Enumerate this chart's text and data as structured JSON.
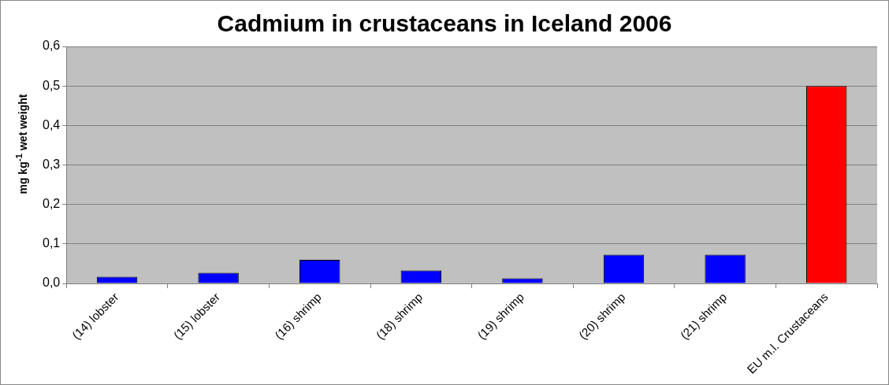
{
  "chart_data": {
    "type": "bar",
    "title": "Cadmium in crustaceans in Iceland 2006",
    "ylabel": "mg kg$^{-1}$ wet weight",
    "categories": [
      "(14) lobster",
      "(15) lobster",
      "(16) shrimp",
      "(18) shrimp",
      "(19) shrimp",
      "(20) shrimp",
      "(21) shrimp",
      "EU m.l. Crustaceans"
    ],
    "values": [
      0.017,
      0.027,
      0.06,
      0.033,
      0.013,
      0.073,
      0.073,
      0.5
    ],
    "colors": [
      "#0000ff",
      "#0000ff",
      "#0000ff",
      "#0000ff",
      "#0000ff",
      "#0000ff",
      "#0000ff",
      "#ff0000"
    ],
    "ylim": [
      0,
      0.6
    ],
    "yticks": [
      {
        "value": 0,
        "label": "0,0"
      },
      {
        "value": 0.1,
        "label": "0,1"
      },
      {
        "value": 0.2,
        "label": "0,2"
      },
      {
        "value": 0.3,
        "label": "0,3"
      },
      {
        "value": 0.4,
        "label": "0,4"
      },
      {
        "value": 0.5,
        "label": "0,5"
      },
      {
        "value": 0.6,
        "label": "0,6"
      }
    ],
    "grid": "y",
    "legend": false
  }
}
